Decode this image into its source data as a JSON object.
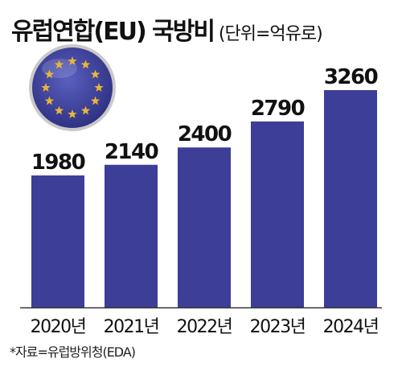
{
  "header": {
    "title": "유럽연합(EU) 국방비",
    "unit": "(단위=억유로)"
  },
  "footer": {
    "source": "*자료=유럽방위청(EDA)"
  },
  "emblem": {
    "icon": "eu-flag-icon",
    "colors": {
      "field": "#3a3f9a",
      "star": "#e9b53a",
      "rim": "#c9c9c9"
    }
  },
  "colors": {
    "bar": "#3d3e98",
    "baseline": "#333333"
  },
  "chart_data": {
    "type": "bar",
    "title": "유럽연합(EU) 국방비",
    "unit": "(단위=억유로)",
    "categories": [
      "2020년",
      "2021년",
      "2022년",
      "2023년",
      "2024년"
    ],
    "values": [
      1980,
      2140,
      2400,
      2790,
      3260
    ],
    "ylim": [
      0,
      3260
    ],
    "grid": false,
    "legend": "none"
  }
}
